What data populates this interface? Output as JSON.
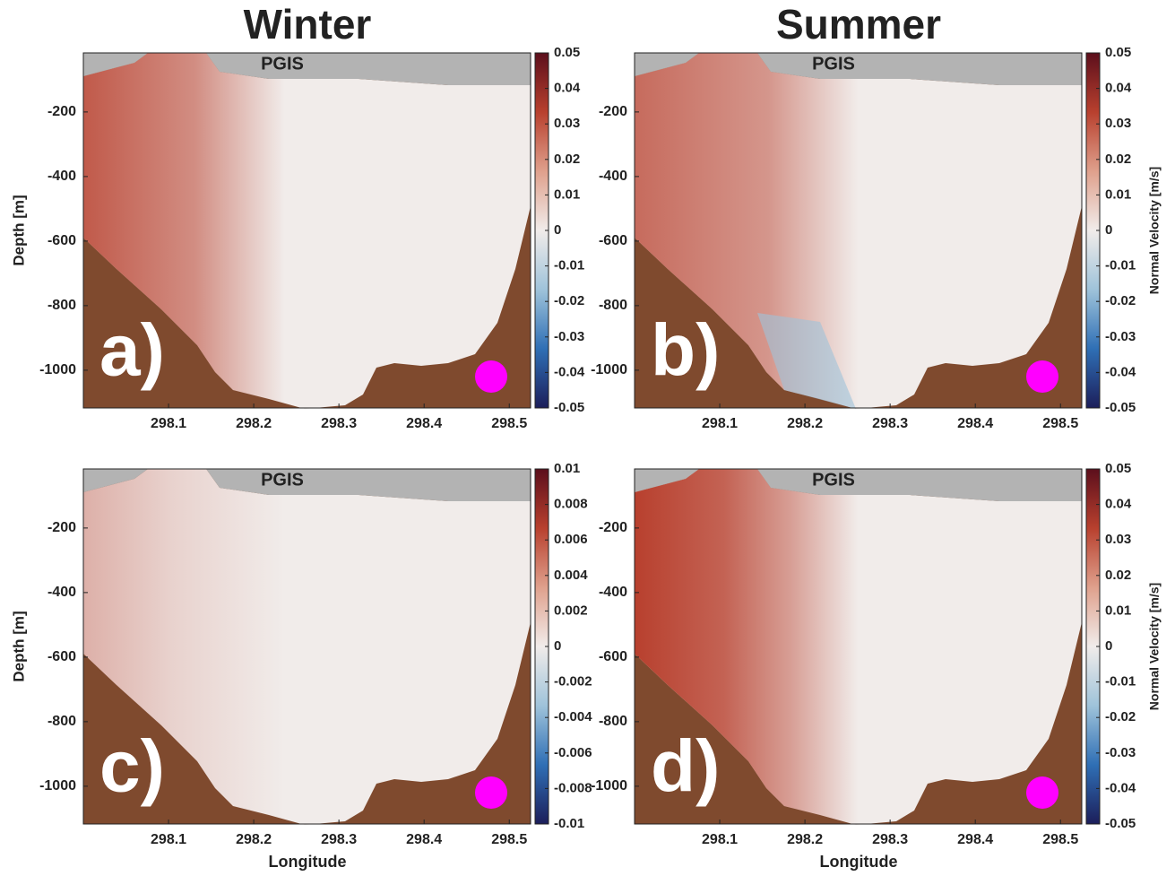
{
  "chart_data": [
    {
      "type": "heatmap",
      "title": "Winter",
      "ylabel": "Depth [m]",
      "annotation": "PGIS",
      "panel_label": "a)",
      "xlim": [
        298.0,
        298.525
      ],
      "xticks": [
        298.1,
        298.2,
        298.3,
        298.4,
        298.5
      ],
      "ylim": [
        -1117,
        -17
      ],
      "yticks": [
        -200,
        -400,
        -600,
        -800,
        -1000
      ],
      "clim": [
        -0.05,
        0.05
      ],
      "cticks": [
        0.05,
        0.04,
        0.03,
        0.02,
        0.01,
        0,
        -0.01,
        -0.02,
        -0.03,
        -0.04,
        -0.05
      ],
      "colormap": [
        "#1c1e5a",
        "#2f6fb5",
        "#9fc3da",
        "#f1ecea",
        "#dfa08c",
        "#b8402e",
        "#5c0f1c"
      ],
      "land_color": "#7f4a2e",
      "ice_color": "#b3b3b3",
      "marker_color": "#ff00ff"
    },
    {
      "type": "heatmap",
      "title": "Summer",
      "colorbar_label": "Normal Velocity [m/s]",
      "annotation": "PGIS",
      "panel_label": "b)",
      "xlim": [
        298.0,
        298.525
      ],
      "xticks": [
        298.1,
        298.2,
        298.3,
        298.4,
        298.5
      ],
      "ylim": [
        -1117,
        -17
      ],
      "yticks": [
        -200,
        -400,
        -600,
        -800,
        -1000
      ],
      "clim": [
        -0.05,
        0.05
      ],
      "cticks": [
        0.05,
        0.04,
        0.03,
        0.02,
        0.01,
        0,
        -0.01,
        -0.02,
        -0.03,
        -0.04,
        -0.05
      ],
      "colormap": [
        "#1c1e5a",
        "#2f6fb5",
        "#9fc3da",
        "#f1ecea",
        "#dfa08c",
        "#b8402e",
        "#5c0f1c"
      ],
      "land_color": "#7f4a2e",
      "ice_color": "#b3b3b3",
      "marker_color": "#ff00ff"
    },
    {
      "type": "heatmap",
      "ylabel": "Depth [m]",
      "xlabel": "Longitude",
      "annotation": "PGIS",
      "panel_label": "c)",
      "xlim": [
        298.0,
        298.525
      ],
      "xticks": [
        298.1,
        298.2,
        298.3,
        298.4,
        298.5
      ],
      "ylim": [
        -1117,
        -17
      ],
      "yticks": [
        -200,
        -400,
        -600,
        -800,
        -1000
      ],
      "clim": [
        -0.01,
        0.01
      ],
      "cticks": [
        0.01,
        0.008,
        0.006,
        0.004,
        0.002,
        0,
        -0.002,
        -0.004,
        -0.006,
        -0.008,
        -0.01
      ],
      "colormap": [
        "#1c1e5a",
        "#2f6fb5",
        "#9fc3da",
        "#f1ecea",
        "#dfa08c",
        "#b8402e",
        "#5c0f1c"
      ],
      "land_color": "#7f4a2e",
      "ice_color": "#b3b3b3",
      "marker_color": "#ff00ff"
    },
    {
      "type": "heatmap",
      "xlabel": "Longitude",
      "colorbar_label": "Normal Velocity [m/s]",
      "annotation": "PGIS",
      "panel_label": "d)",
      "xlim": [
        298.0,
        298.525
      ],
      "xticks": [
        298.1,
        298.2,
        298.3,
        298.4,
        298.5
      ],
      "ylim": [
        -1117,
        -17
      ],
      "yticks": [
        -200,
        -400,
        -600,
        -800,
        -1000
      ],
      "clim": [
        -0.05,
        0.05
      ],
      "cticks": [
        0.05,
        0.04,
        0.03,
        0.02,
        0.01,
        0,
        -0.01,
        -0.02,
        -0.03,
        -0.04,
        -0.05
      ],
      "colormap": [
        "#1c1e5a",
        "#2f6fb5",
        "#9fc3da",
        "#f1ecea",
        "#dfa08c",
        "#b8402e",
        "#5c0f1c"
      ],
      "land_color": "#7f4a2e",
      "ice_color": "#b3b3b3",
      "marker_color": "#ff00ff"
    }
  ]
}
